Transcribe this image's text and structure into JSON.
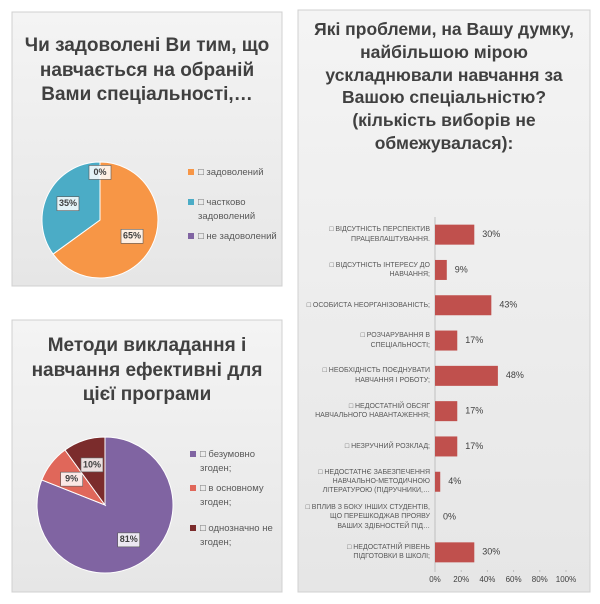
{
  "chart_data": [
    {
      "type": "pie",
      "title": "Чи задоволені Ви тим, що навчається на обраній Вами спеціальності,…",
      "categories": [
        "□ задоволений",
        "□ частково задоволений",
        "□ не задоволений"
      ],
      "values": [
        65,
        35,
        0
      ],
      "value_labels": [
        "65%",
        "35%",
        "0%"
      ],
      "colors": [
        "#f79646",
        "#4bacc6",
        "#8064a2"
      ]
    },
    {
      "type": "pie",
      "title": "Методи викладання і навчання ефективні для цієї програми",
      "categories": [
        "□ безумовно згоден;",
        "□ в основному згоден;",
        "□ однозначно не згоден;"
      ],
      "values": [
        81,
        9,
        10
      ],
      "value_labels": [
        "81%",
        "9%",
        "10%"
      ],
      "colors": [
        "#8064a2",
        "#e0675a",
        "#7b2c2c"
      ]
    },
    {
      "type": "bar",
      "orientation": "horizontal",
      "title": "Які проблеми, на Вашу думку, найбільшою мірою ускладнювали навчання за Вашою спеціальністю? (кількість виборів не обмежувалася):",
      "categories": [
        "□ ВІДСУТНІСТЬ ПЕРСПЕКТИВ ПРАЦЕВЛАШТУВАННЯ.",
        "□ ВІДСУТНІСТЬ ІНТЕРЕСУ ДО НАВЧАННЯ;",
        "□ ОСОБИСТА НЕОРГАНІЗОВАНІСТЬ;",
        "□ РОЗЧАРУВАННЯ В СПЕЦІАЛЬНОСТІ;",
        "□ НЕОБХІДНІСТЬ ПОЄДНУВАТИ НАВЧАННЯ І РОБОТУ;",
        "□ НЕДОСТАТНІЙ ОБСЯГ НАВЧАЛЬНОГО НАВАНТАЖЕННЯ;",
        "□ НЕЗРУЧНИЙ РОЗКЛАД;",
        "□ НЕДОСТАТНЄ ЗАБЕЗПЕЧЕННЯ НАВЧАЛЬНО-МЕТОДИЧНОЮ ЛІТЕРАТУРОЮ (ПІДРУЧНИКИ,…",
        "□ ВПЛИВ З БОКУ ІНШИХ СТУДЕНТІВ, ЩО ПЕРЕШКОДЖАВ ПРОЯВУ ВАШИХ ЗДІБНОСТЕЙ ПІД…",
        "□ НЕДОСТАТНІЙ РІВЕНЬ ПІДГОТОВКИ В ШКОЛІ;"
      ],
      "values": [
        30,
        9,
        43,
        17,
        48,
        17,
        17,
        4,
        0,
        30
      ],
      "value_labels": [
        "30%",
        "9%",
        "43%",
        "17%",
        "48%",
        "17%",
        "17%",
        "4%",
        "0%",
        "30%"
      ],
      "color": "#c0504d",
      "xlim": [
        0,
        100
      ],
      "xticks": [
        {
          "value": 0,
          "label": "0%"
        },
        {
          "value": 20,
          "label": "20%"
        },
        {
          "value": 40,
          "label": "40%"
        },
        {
          "value": 60,
          "label": "60%"
        },
        {
          "value": 80,
          "label": "80%"
        },
        {
          "value": 100,
          "label": "100%"
        }
      ],
      "grid": false
    }
  ]
}
